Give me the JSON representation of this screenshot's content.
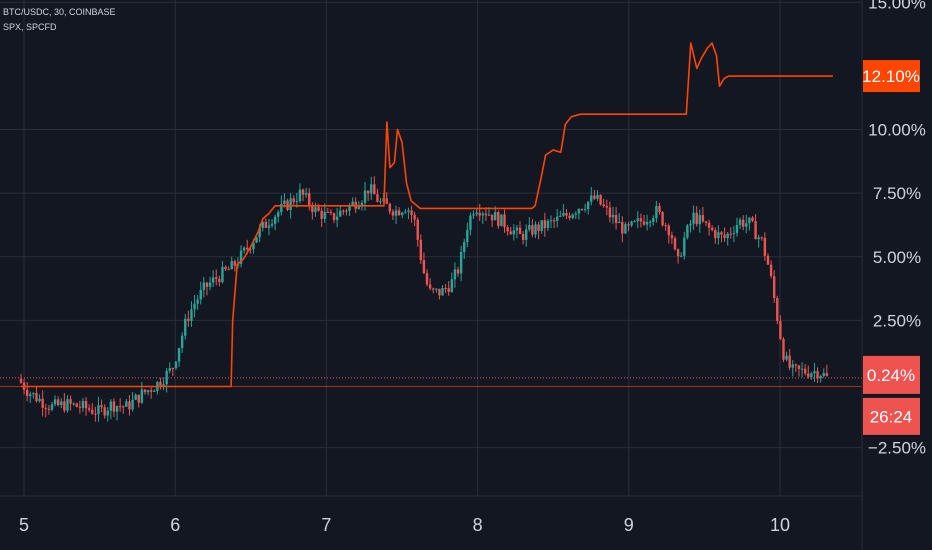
{
  "header": {
    "symbol_line": "BTC/USDC, 30, COINBASE",
    "compare_line": "SPX, SPCFD"
  },
  "colors": {
    "background": "#131722",
    "grid": "#2a2e39",
    "up": "#26a69a",
    "down": "#ef5350",
    "compare_line": "#ff4500",
    "badge_compare": "#ff4500",
    "badge_price": "#ef5350",
    "text": "#d1d4dc"
  },
  "price_axis": {
    "ticks": [
      "15.00%",
      "12.10%",
      "10.00%",
      "7.50%",
      "5.00%",
      "2.50%",
      "0.24%",
      "-2.50%"
    ],
    "tick_values": [
      15.0,
      10.0,
      7.5,
      5.0,
      2.5,
      -2.5
    ],
    "tick_labels": [
      "15.00%",
      "10.00%",
      "7.50%",
      "5.00%",
      "2.50%",
      "−2.50%"
    ],
    "compare_badge": "12.10%",
    "compare_value": 12.1,
    "price_badge": "0.24%",
    "price_value": 0.24,
    "countdown_badge": "26:24"
  },
  "time_axis": {
    "labels": [
      "5",
      "6",
      "7",
      "8",
      "9",
      "10"
    ]
  },
  "chart_data": {
    "type": "line",
    "ylim": [
      -3.5,
      15.0
    ],
    "xlim": [
      4.98,
      10.55
    ],
    "grid": true,
    "series": [
      {
        "name": "SPX, SPCFD",
        "kind": "line",
        "points": [
          [
            4.98,
            -0.1
          ],
          [
            6.37,
            -0.1
          ],
          [
            6.38,
            2.5
          ],
          [
            6.41,
            4.7
          ],
          [
            6.45,
            4.9
          ],
          [
            6.5,
            5.4
          ],
          [
            6.55,
            6.0
          ],
          [
            6.58,
            6.5
          ],
          [
            6.62,
            6.7
          ],
          [
            6.66,
            7.0
          ],
          [
            7.38,
            7.0
          ],
          [
            7.4,
            10.3
          ],
          [
            7.42,
            8.5
          ],
          [
            7.45,
            8.7
          ],
          [
            7.47,
            10.0
          ],
          [
            7.5,
            9.5
          ],
          [
            7.53,
            7.9
          ],
          [
            7.56,
            7.2
          ],
          [
            7.62,
            6.9
          ],
          [
            8.36,
            6.9
          ],
          [
            8.38,
            7.0
          ],
          [
            8.42,
            8.1
          ],
          [
            8.45,
            9.0
          ],
          [
            8.5,
            9.2
          ],
          [
            8.55,
            9.1
          ],
          [
            8.58,
            10.2
          ],
          [
            8.62,
            10.5
          ],
          [
            8.68,
            10.6
          ],
          [
            9.38,
            10.6
          ],
          [
            9.41,
            13.4
          ],
          [
            9.45,
            12.4
          ],
          [
            9.48,
            12.8
          ],
          [
            9.52,
            13.2
          ],
          [
            9.55,
            13.4
          ],
          [
            9.58,
            12.9
          ],
          [
            9.6,
            11.7
          ],
          [
            9.63,
            12.0
          ],
          [
            9.66,
            12.1
          ],
          [
            10.35,
            12.1
          ]
        ]
      },
      {
        "name": "BTC/USDC, 30, COINBASE",
        "kind": "candlestick",
        "path": [
          [
            4.98,
            0.2
          ],
          [
            5.05,
            -0.3
          ],
          [
            5.12,
            -0.6
          ],
          [
            5.2,
            -0.9
          ],
          [
            5.3,
            -0.8
          ],
          [
            5.4,
            -0.9
          ],
          [
            5.52,
            -1.1
          ],
          [
            5.6,
            -0.8
          ],
          [
            5.7,
            -0.9
          ],
          [
            5.8,
            -0.4
          ],
          [
            5.9,
            0.0
          ],
          [
            6.0,
            0.6
          ],
          [
            6.05,
            1.6
          ],
          [
            6.1,
            2.6
          ],
          [
            6.15,
            3.2
          ],
          [
            6.22,
            3.8
          ],
          [
            6.3,
            4.2
          ],
          [
            6.4,
            4.6
          ],
          [
            6.48,
            5.2
          ],
          [
            6.55,
            5.8
          ],
          [
            6.65,
            6.5
          ],
          [
            6.75,
            7.0
          ],
          [
            6.85,
            7.5
          ],
          [
            6.95,
            6.8
          ],
          [
            7.05,
            6.5
          ],
          [
            7.15,
            6.9
          ],
          [
            7.25,
            7.3
          ],
          [
            7.3,
            7.7
          ],
          [
            7.38,
            7.1
          ],
          [
            7.48,
            6.8
          ],
          [
            7.55,
            7.0
          ],
          [
            7.6,
            6.5
          ],
          [
            7.66,
            4.5
          ],
          [
            7.7,
            3.6
          ],
          [
            7.78,
            3.6
          ],
          [
            7.85,
            4.0
          ],
          [
            7.9,
            4.6
          ],
          [
            7.95,
            6.2
          ],
          [
            8.0,
            7.0
          ],
          [
            8.1,
            6.7
          ],
          [
            8.2,
            6.3
          ],
          [
            8.3,
            5.8
          ],
          [
            8.4,
            6.1
          ],
          [
            8.5,
            6.3
          ],
          [
            8.6,
            6.6
          ],
          [
            8.7,
            7.0
          ],
          [
            8.8,
            7.3
          ],
          [
            8.9,
            6.6
          ],
          [
            9.0,
            6.0
          ],
          [
            9.1,
            6.4
          ],
          [
            9.2,
            6.8
          ],
          [
            9.3,
            6.0
          ],
          [
            9.34,
            4.6
          ],
          [
            9.38,
            5.6
          ],
          [
            9.45,
            6.6
          ],
          [
            9.55,
            6.1
          ],
          [
            9.65,
            5.7
          ],
          [
            9.75,
            6.4
          ],
          [
            9.82,
            6.3
          ],
          [
            9.9,
            5.6
          ],
          [
            9.95,
            4.5
          ],
          [
            10.02,
            2.0
          ],
          [
            10.05,
            1.0
          ],
          [
            10.1,
            0.5
          ],
          [
            10.2,
            0.5
          ],
          [
            10.28,
            0.5
          ],
          [
            10.33,
            0.24
          ]
        ]
      }
    ]
  }
}
